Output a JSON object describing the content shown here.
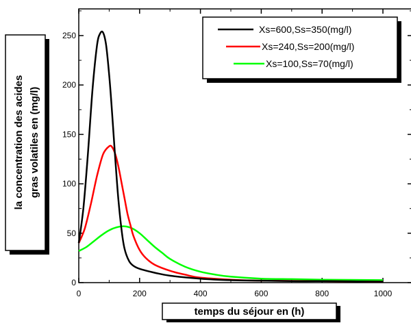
{
  "chart_data": {
    "type": "line",
    "xlabel": "temps du séjour en (h)",
    "ylabel_lines": [
      "la concentration des acides",
      "gras volatiles en (mg/l)"
    ],
    "xlim": [
      0,
      1000
    ],
    "ylim": [
      0,
      260
    ],
    "xticks": [
      0,
      200,
      400,
      600,
      800,
      1000
    ],
    "yticks": [
      0,
      50,
      100,
      150,
      200,
      250
    ],
    "grid": false,
    "legend_position": "top-right",
    "series": [
      {
        "name": "Xs=600,Ss=350(mg/l)",
        "color": "#000000",
        "x": [
          0,
          15,
          30,
          45,
          60,
          70,
          80,
          90,
          100,
          110,
          120,
          130,
          140,
          150,
          165,
          180,
          200,
          250,
          300,
          400,
          500,
          600,
          700,
          800,
          1000
        ],
        "y": [
          40,
          75,
          130,
          195,
          240,
          252,
          253,
          240,
          210,
          170,
          125,
          85,
          55,
          35,
          22,
          17,
          14,
          10,
          7,
          4,
          2.5,
          2,
          1.5,
          1.5,
          1
        ]
      },
      {
        "name": "Xs=240,Ss=200(mg/l)",
        "color": "#ff0000",
        "x": [
          0,
          20,
          40,
          60,
          80,
          100,
          110,
          120,
          130,
          140,
          150,
          160,
          170,
          180,
          200,
          220,
          250,
          300,
          350,
          400,
          500,
          600,
          800,
          1000
        ],
        "y": [
          40,
          55,
          80,
          108,
          130,
          138,
          137,
          130,
          118,
          102,
          86,
          70,
          58,
          47,
          33,
          25,
          18,
          12,
          8,
          5,
          3,
          2,
          1.5,
          1
        ]
      },
      {
        "name": "Xs=100,Ss=70(mg/l)",
        "color": "#00ff00",
        "x": [
          0,
          25,
          50,
          75,
          100,
          125,
          150,
          175,
          200,
          225,
          250,
          275,
          300,
          350,
          400,
          450,
          500,
          600,
          700,
          800,
          1000
        ],
        "y": [
          32,
          36,
          42,
          48,
          53,
          56,
          57,
          55,
          50,
          43,
          36,
          30,
          24,
          16,
          11,
          8,
          6,
          4,
          3.5,
          3,
          2.5
        ]
      }
    ]
  }
}
